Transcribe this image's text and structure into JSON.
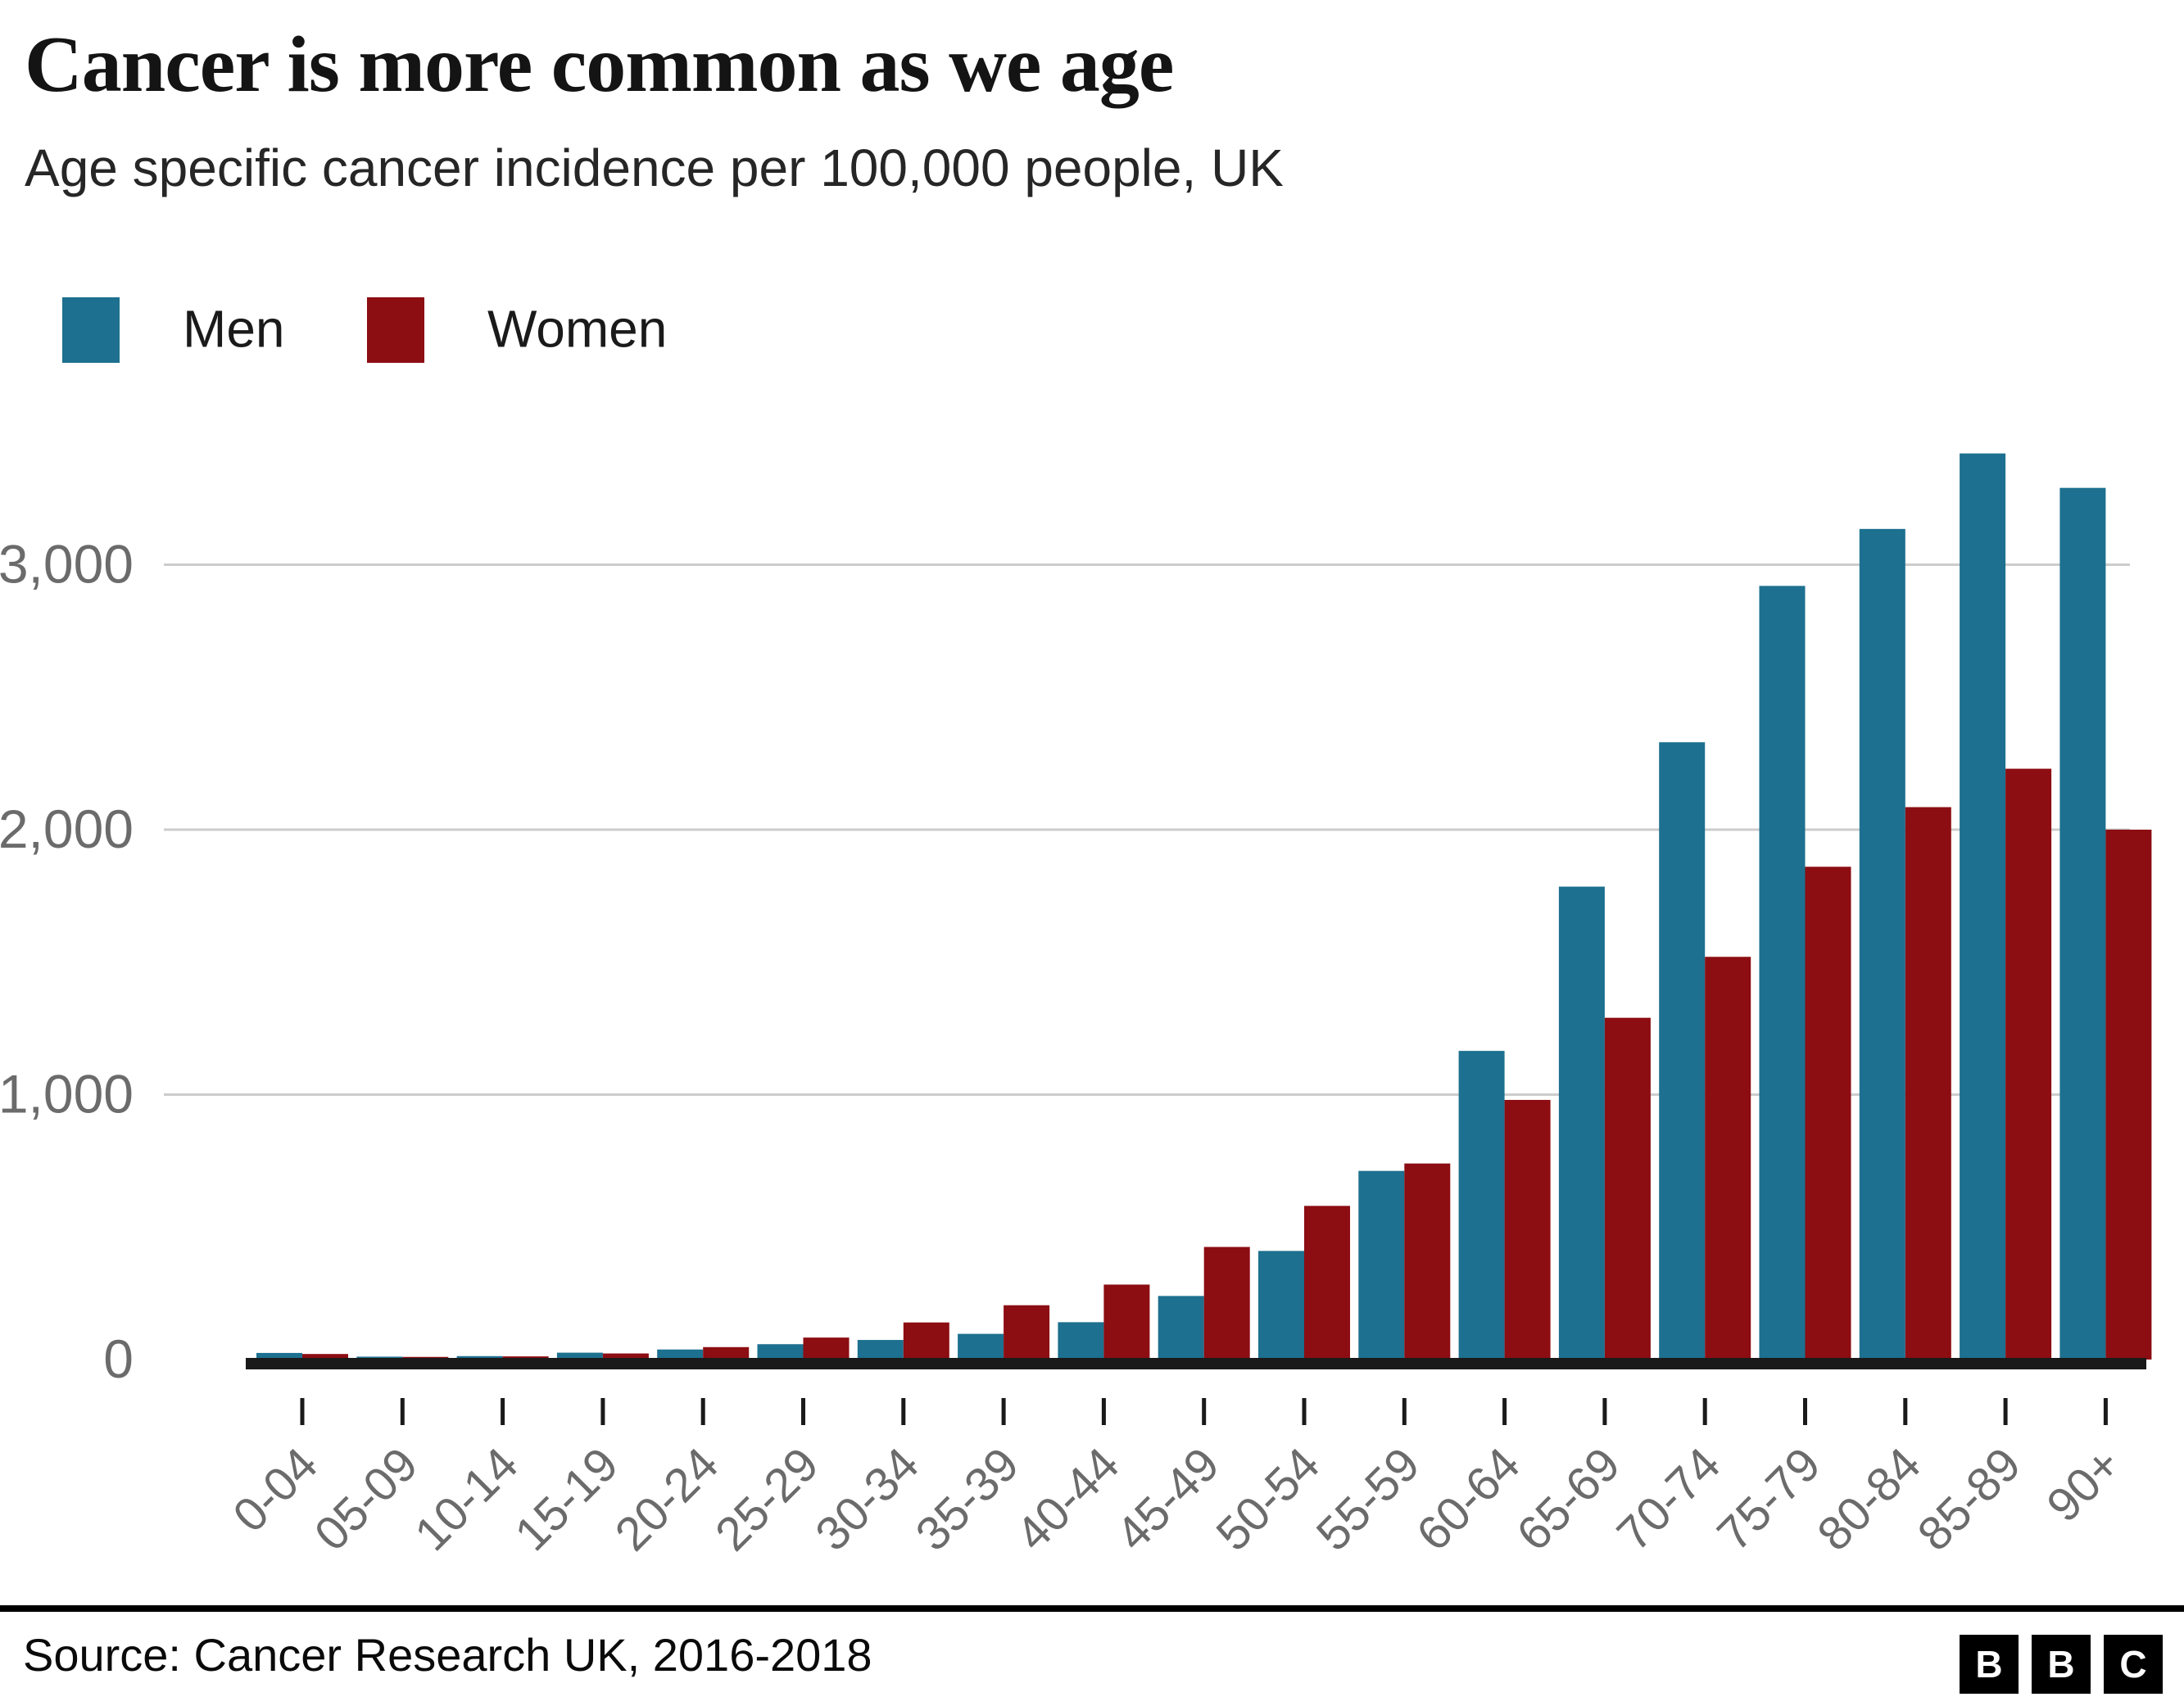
{
  "header": {
    "title": "Cancer is more common as we age",
    "subtitle": "Age specific cancer incidence per 100,000 people, UK"
  },
  "legend": {
    "items": [
      {
        "label": "Men",
        "color": "#1d708f"
      },
      {
        "label": "Women",
        "color": "#8c0d12"
      }
    ],
    "position": "top-left"
  },
  "chart_data": {
    "type": "bar",
    "grouped": true,
    "title": "Cancer is more common as we age",
    "subtitle": "Age specific cancer incidence per 100,000 people, UK",
    "xlabel": "",
    "ylabel": "",
    "grid": true,
    "legend_position": "top-left",
    "categories": [
      "0-04",
      "05-09",
      "10-14",
      "15-19",
      "20-24",
      "25-29",
      "30-34",
      "35-39",
      "40-44",
      "45-49",
      "50-54",
      "55-59",
      "60-64",
      "65-69",
      "70-74",
      "75-79",
      "80-84",
      "85-89",
      "90+"
    ],
    "series": [
      {
        "name": "Men",
        "color": "#1d708f",
        "values": [
          25,
          11,
          13,
          26,
          38,
          58,
          74,
          97,
          141,
          240,
          410,
          712,
          1165,
          1785,
          2330,
          2920,
          3135,
          3420,
          3290
        ]
      },
      {
        "name": "Women",
        "color": "#8c0d12",
        "values": [
          21,
          10,
          12,
          23,
          47,
          83,
          140,
          205,
          283,
          425,
          580,
          740,
          980,
          1290,
          1520,
          1860,
          2085,
          2230,
          2000
        ]
      }
    ],
    "ylim": [
      0,
      3500
    ],
    "yticks": [
      0,
      1000,
      2000,
      3000
    ],
    "ytick_labels": [
      "0",
      "1,000",
      "2,000",
      "3,000"
    ]
  },
  "footer": {
    "source": "Source: Cancer Research UK, 2016-2018",
    "logo_letters": [
      "B",
      "B",
      "C"
    ]
  },
  "colors": {
    "men": "#1d708f",
    "women": "#8c0d12",
    "gridline": "#cccccc",
    "axis_line": "#1a1a1a",
    "axis_label": "#6b6b6b",
    "text": "#141414"
  }
}
